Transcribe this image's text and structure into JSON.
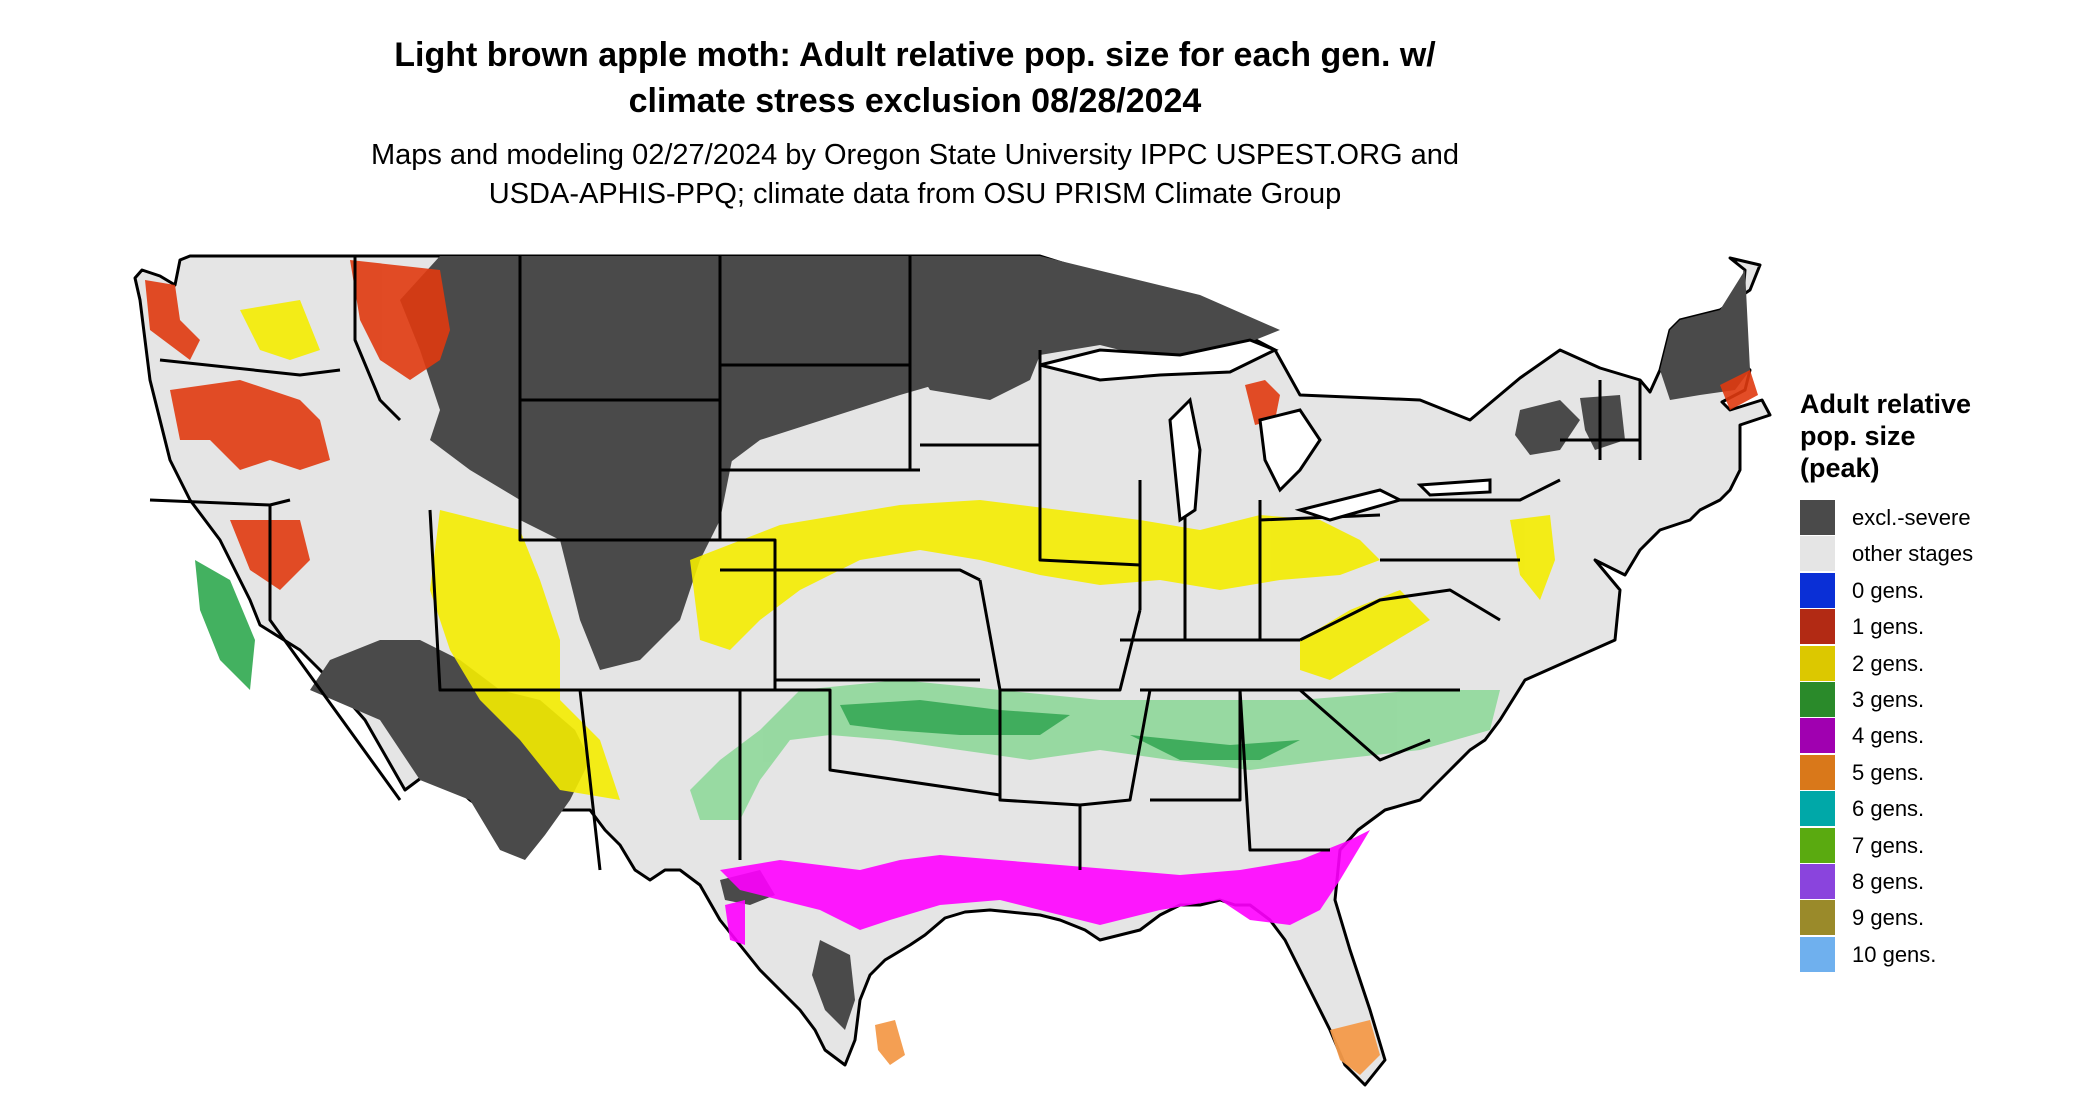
{
  "title": {
    "line1": "Light brown apple moth: Adult relative pop. size for each gen. w/",
    "line2": "climate stress exclusion 08/28/2024"
  },
  "subtitle": {
    "line1": "Maps and modeling 02/27/2024 by Oregon State University IPPC USPEST.ORG and",
    "line2": "USDA-APHIS-PPQ; climate data from OSU PRISM Climate Group"
  },
  "legend": {
    "title_line1": "Adult relative",
    "title_line2": "pop. size",
    "title_line3": "(peak)",
    "items": [
      {
        "label": "excl.-severe",
        "color": "#4a4a4a"
      },
      {
        "label": "other stages",
        "color": "#e5e5e5"
      },
      {
        "label": "0 gens.",
        "color": "#0a2fd6"
      },
      {
        "label": "1 gens.",
        "color": "#b22a14"
      },
      {
        "label": "2 gens.",
        "color": "#dcc800"
      },
      {
        "label": "3 gens.",
        "color": "#2a8a2a"
      },
      {
        "label": "4 gens.",
        "color": "#a000b0"
      },
      {
        "label": "5 gens.",
        "color": "#d9781a"
      },
      {
        "label": "6 gens.",
        "color": "#00a8a8"
      },
      {
        "label": "7 gens.",
        "color": "#5aaa10"
      },
      {
        "label": "8 gens.",
        "color": "#8a44dd"
      },
      {
        "label": "9 gens.",
        "color": "#9a8a2a"
      },
      {
        "label": "10 gens.",
        "color": "#6fb0ee"
      }
    ]
  },
  "map_colors": {
    "excluded": "#4a4a4a",
    "other_stages": "#e5e5e5",
    "one_gen": "#e03a10",
    "two_gen": "#f4ec00",
    "three_gen": "#2fa84f",
    "three_gen_light": "#8fd89a",
    "four_gen": "#ff00ff",
    "five_gen": "#f39a4a",
    "border": "#000000"
  }
}
